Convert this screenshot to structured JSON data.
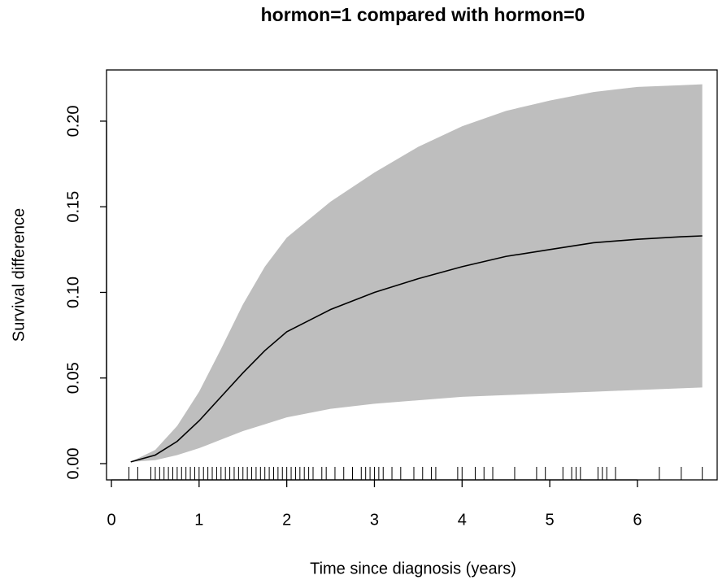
{
  "chart_data": {
    "type": "line",
    "title": "hormon=1 compared with hormon=0",
    "xlabel": "Time since diagnosis (years)",
    "ylabel": "Survival difference",
    "x": [
      0.22,
      0.5,
      0.75,
      1.0,
      1.25,
      1.5,
      1.75,
      2.0,
      2.5,
      3.0,
      3.5,
      4.0,
      4.5,
      5.0,
      5.5,
      6.0,
      6.5,
      6.74
    ],
    "values": [
      0.001,
      0.005,
      0.013,
      0.025,
      0.039,
      0.053,
      0.066,
      0.077,
      0.09,
      0.1,
      0.108,
      0.115,
      0.121,
      0.125,
      0.129,
      0.131,
      0.1325,
      0.133
    ],
    "upper": [
      0.001,
      0.008,
      0.022,
      0.042,
      0.067,
      0.093,
      0.115,
      0.132,
      0.153,
      0.17,
      0.185,
      0.197,
      0.206,
      0.212,
      0.217,
      0.22,
      0.221,
      0.2215
    ],
    "lower": [
      0.001,
      0.002,
      0.005,
      0.009,
      0.014,
      0.019,
      0.023,
      0.027,
      0.032,
      0.035,
      0.037,
      0.039,
      0.04,
      0.041,
      0.042,
      0.043,
      0.044,
      0.0445
    ],
    "rug": [
      0.2,
      0.3,
      0.45,
      0.5,
      0.55,
      0.6,
      0.65,
      0.7,
      0.75,
      0.8,
      0.85,
      0.9,
      0.95,
      1.0,
      1.05,
      1.1,
      1.15,
      1.2,
      1.25,
      1.3,
      1.35,
      1.4,
      1.45,
      1.5,
      1.55,
      1.6,
      1.65,
      1.7,
      1.75,
      1.8,
      1.85,
      1.9,
      1.95,
      2.0,
      2.05,
      2.1,
      2.15,
      2.2,
      2.25,
      2.3,
      2.4,
      2.45,
      2.55,
      2.65,
      2.75,
      2.85,
      2.9,
      2.95,
      3.0,
      3.05,
      3.1,
      3.2,
      3.3,
      3.45,
      3.55,
      3.65,
      3.7,
      3.95,
      4.0,
      4.15,
      4.25,
      4.35,
      4.6,
      4.85,
      4.95,
      5.15,
      5.25,
      5.3,
      5.35,
      5.55,
      5.6,
      5.65,
      5.75,
      6.25,
      6.5,
      6.74
    ],
    "color": "#000000",
    "band_color": "#bebebe",
    "xlim": [
      -0.056,
      6.91
    ],
    "ylim": [
      -0.0095,
      0.2299
    ],
    "xticks": [
      0,
      1,
      2,
      3,
      4,
      5,
      6
    ],
    "yticks": [
      {
        "value": 0,
        "label": "0.00"
      },
      {
        "value": 0.05,
        "label": "0.05"
      },
      {
        "value": 0.1,
        "label": "0.10"
      },
      {
        "value": 0.15,
        "label": "0.15"
      },
      {
        "value": 0.2,
        "label": "0.20"
      }
    ]
  }
}
